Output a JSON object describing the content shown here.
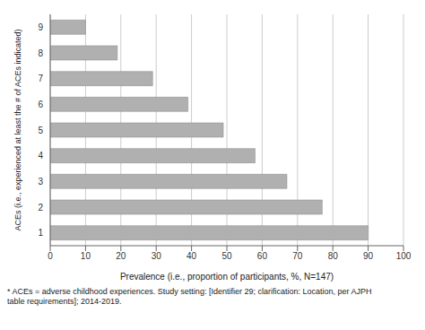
{
  "chart_data": {
    "type": "bar",
    "orientation": "horizontal",
    "categories": [
      1,
      2,
      3,
      4,
      5,
      6,
      7,
      8,
      9
    ],
    "values": [
      90,
      77,
      67,
      58,
      49,
      39,
      29,
      19,
      10
    ],
    "color": "#b0b0b0",
    "xlabel": "Prevalence (i.e., proportion of participants, %, N=147)",
    "ylabel": "ACEs (i.e., experienced at least the # of ACEs indicated)",
    "xlim": [
      0,
      100
    ],
    "xticks": [
      0,
      10,
      20,
      30,
      40,
      50,
      60,
      70,
      80,
      90,
      100
    ],
    "grid": "x",
    "annotations": [
      "* ACEs = adverse childhood experiences. Study setting: [Identifier 29; clarification: Location, per AJPH",
      "table requirements]; 2014-2019."
    ]
  }
}
